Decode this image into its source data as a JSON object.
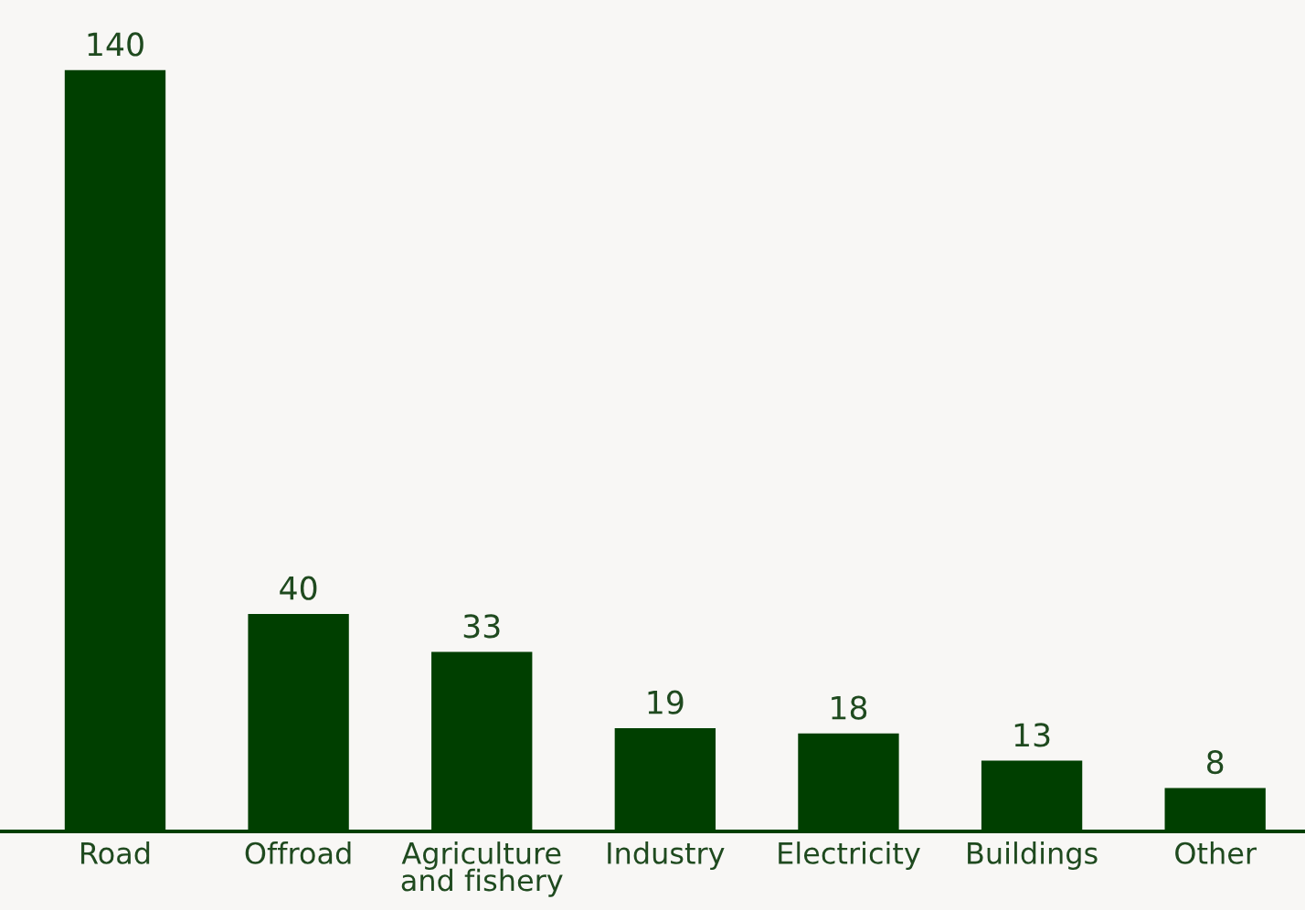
{
  "chart_data": {
    "type": "bar",
    "categories": [
      "Road",
      "Offroad",
      "Agriculture\nand fishery",
      "Industry",
      "Electricity",
      "Buildings",
      "Other"
    ],
    "values": [
      140,
      40,
      33,
      19,
      18,
      13,
      8
    ],
    "color": "#003f00",
    "data_labels": true,
    "grid": false,
    "legend": false
  }
}
